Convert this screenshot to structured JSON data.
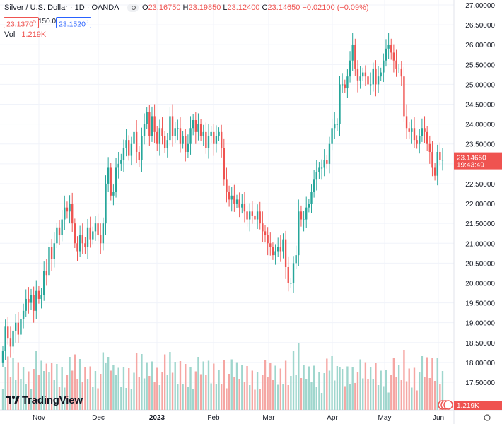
{
  "header": {
    "icon": "silver-circle-icon",
    "symbol": "Silver / U.S. Dollar · 1D · OANDA",
    "ohlc": [
      {
        "label": "O",
        "value": "23.16750"
      },
      {
        "label": "H",
        "value": "23.19850"
      },
      {
        "label": "L",
        "value": "23.12400"
      },
      {
        "label": "C",
        "value": "23.14650"
      }
    ],
    "change": "−0.02100 (−0.09%)",
    "sell_price": "23.1370",
    "sell_sup": "5",
    "spread": "150.0",
    "buy_price": "23.1520",
    "buy_sup": "0",
    "vol_label": "Vol",
    "vol_value": "1.219K"
  },
  "price_tag": {
    "value": "23.14650",
    "countdown": "19:43:49"
  },
  "vol_tag": "1.219K",
  "logo_text": "TradingView",
  "colors": {
    "up": "#26a69a",
    "down": "#ef5350",
    "up_vol": "#9fd6cd",
    "down_vol": "#f5a6a3",
    "grid": "#f0f3fa",
    "axis_text": "#131722"
  },
  "chart_data": {
    "type": "candlestick",
    "y_axis_ticks": [
      "27.00000",
      "26.50000",
      "26.00000",
      "25.50000",
      "25.00000",
      "24.50000",
      "24.00000",
      "23.50000",
      "23.00000",
      "22.50000",
      "22.00000",
      "21.50000",
      "21.00000",
      "20.50000",
      "20.00000",
      "19.50000",
      "19.00000",
      "18.50000",
      "18.00000",
      "17.50000"
    ],
    "x_axis_ticks": [
      "Nov",
      "Dec",
      "2023",
      "Feb",
      "Mar",
      "Apr",
      "May",
      "Jun"
    ],
    "ylim": [
      17.5,
      27.0
    ],
    "last_price": 23.1465,
    "series": [
      {
        "name": "Silver / U.S. Dollar",
        "close": [
          18.3,
          18.9,
          18.6,
          18.4,
          18.8,
          19.0,
          18.7,
          19.1,
          19.3,
          19.6,
          19.5,
          19.7,
          19.3,
          19.8,
          19.6,
          19.7,
          20.3,
          20.2,
          20.9,
          20.6,
          21.0,
          21.4,
          21.2,
          21.6,
          21.9,
          21.8,
          22.0,
          21.5,
          21.0,
          20.8,
          21.2,
          21.0,
          20.9,
          21.4,
          21.1,
          21.3,
          21.5,
          21.2,
          21.0,
          21.5,
          22.5,
          22.9,
          22.2,
          22.3,
          22.9,
          23.0,
          23.1,
          23.4,
          23.6,
          23.2,
          23.5,
          23.8,
          23.3,
          23.1,
          23.7,
          24.0,
          24.3,
          23.7,
          24.2,
          23.8,
          23.5,
          23.9,
          23.7,
          23.4,
          23.6,
          24.2,
          23.7,
          23.9,
          23.9,
          23.5,
          23.7,
          23.3,
          23.5,
          23.9,
          24.1,
          23.8,
          24.0,
          23.7,
          23.8,
          23.4,
          23.7,
          23.8,
          23.5,
          23.7,
          23.8,
          23.4,
          22.6,
          22.3,
          22.1,
          22.2,
          22.0,
          22.1,
          21.9,
          22.0,
          21.8,
          21.6,
          21.8,
          21.7,
          21.6,
          21.8,
          21.5,
          21.3,
          21.2,
          21.0,
          20.9,
          20.7,
          20.8,
          20.9,
          20.8,
          21.1,
          20.4,
          20.0,
          20.0,
          20.5,
          20.7,
          21.8,
          21.6,
          21.6,
          21.9,
          22.0,
          22.3,
          22.6,
          22.8,
          22.9,
          22.9,
          23.1,
          23.0,
          23.5,
          23.9,
          24.0,
          24.0,
          25.0,
          25.0,
          24.9,
          25.2,
          25.6,
          26.0,
          25.4,
          25.1,
          25.2,
          25.3,
          25.2,
          25.0,
          25.0,
          25.4,
          25.0,
          25.2,
          25.3,
          25.6,
          25.9,
          26.0,
          25.8,
          25.6,
          25.4,
          25.4,
          25.2,
          24.2,
          23.9,
          23.8,
          23.9,
          23.6,
          23.5,
          23.7,
          23.9,
          23.8,
          23.5,
          23.3,
          22.9,
          22.7,
          23.3,
          23.1,
          23.1
        ],
        "last_close_label": "23.14650"
      }
    ]
  }
}
